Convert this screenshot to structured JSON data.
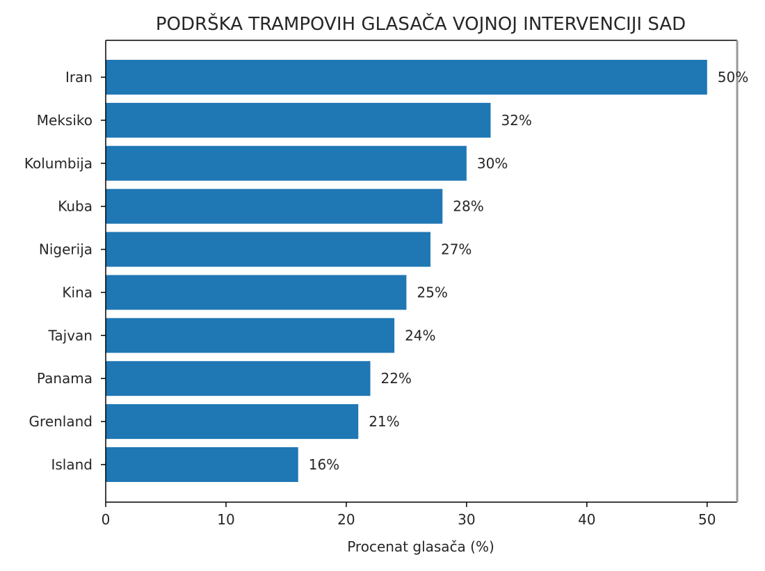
{
  "chart_data": {
    "type": "bar",
    "orientation": "horizontal",
    "title": "PODRŠKA TRAMPOVIH GLASAČA VOJNOJ INTERVENCIJI SAD",
    "xlabel": "Procenat glasača (%)",
    "ylabel": "",
    "categories": [
      "Iran",
      "Meksiko",
      "Kolumbija",
      "Kuba",
      "Nigerija",
      "Kina",
      "Tajvan",
      "Panama",
      "Grenland",
      "Island"
    ],
    "values": [
      50,
      32,
      30,
      28,
      27,
      25,
      24,
      22,
      21,
      16
    ],
    "data_labels": [
      "50%",
      "32%",
      "30%",
      "28%",
      "27%",
      "25%",
      "24%",
      "22%",
      "21%",
      "16%"
    ],
    "xlim": [
      0,
      52.5
    ],
    "xticks": [
      0,
      10,
      20,
      30,
      40,
      50
    ],
    "grid": false,
    "legend": "none",
    "bar_color": "#1f77b4",
    "axis_color": "#000000",
    "text_color": "#262626"
  }
}
